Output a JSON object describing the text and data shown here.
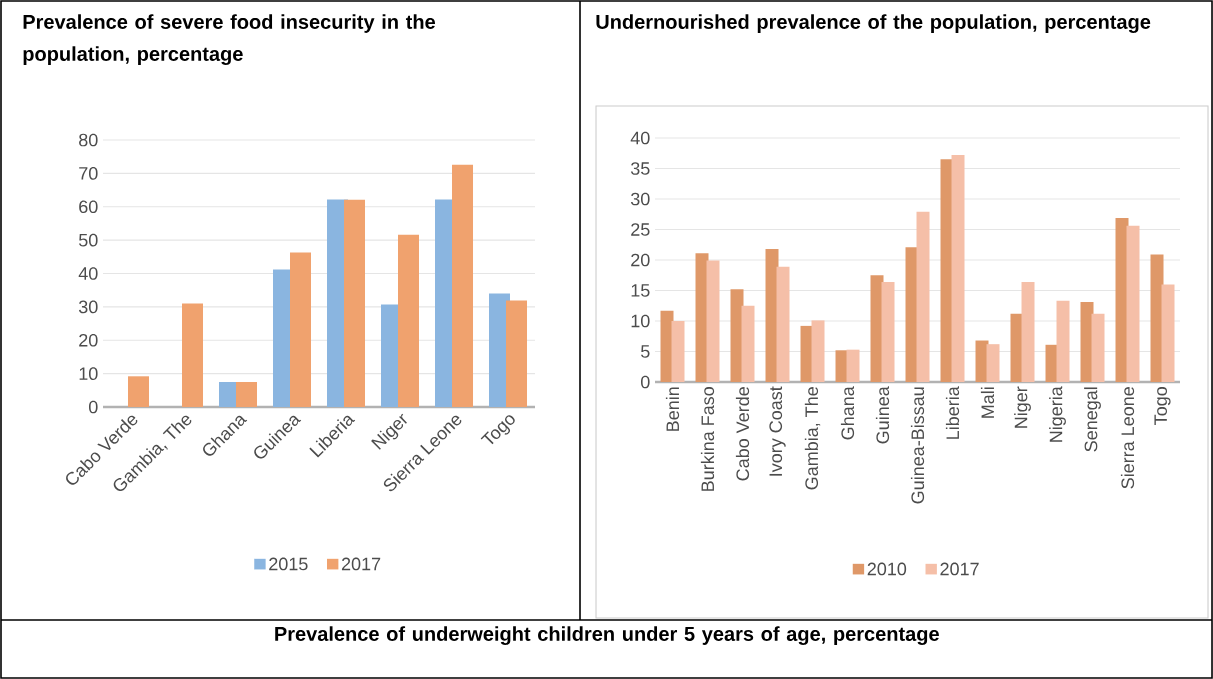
{
  "chart_data": [
    {
      "type": "bar",
      "title": "Prevalence of severe food insecurity in the population, percentage",
      "categories": [
        "Cabo Verde",
        "Gambia, The",
        "Ghana",
        "Guinea",
        "Liberia",
        "Niger",
        "Sierra Leone",
        "Togo"
      ],
      "series": [
        {
          "name": "2015",
          "color": "#8ab5e0",
          "values": [
            null,
            null,
            7.5,
            41.2,
            62.2,
            30.7,
            62.2,
            34.0
          ]
        },
        {
          "name": "2017",
          "color": "#f0a26e",
          "values": [
            9.2,
            31.0,
            7.5,
            46.3,
            62.1,
            51.6,
            72.6,
            31.9
          ]
        }
      ],
      "ylim": [
        0,
        80
      ],
      "yticks": [
        0,
        10,
        20,
        30,
        40,
        50,
        60,
        70,
        80
      ],
      "grid": "y",
      "legend": "bottom"
    },
    {
      "type": "bar",
      "title": "Undernourished prevalence of the population, percentage",
      "categories": [
        "Benin",
        "Burkina Faso",
        "Cabo Verde",
        "Ivory Coast",
        "Gambia, The",
        "Ghana",
        "Guinea",
        "Guinea-Bissau",
        "Liberia",
        "Mali",
        "Niger",
        "Nigeria",
        "Senegal",
        "Sierra Leone",
        "Togo"
      ],
      "series": [
        {
          "name": "2010",
          "color": "#df9868",
          "values": [
            11.7,
            21.1,
            15.2,
            21.8,
            9.2,
            5.2,
            17.5,
            22.1,
            36.5,
            6.8,
            11.2,
            6.1,
            13.1,
            26.9,
            20.9
          ]
        },
        {
          "name": "2017",
          "color": "#f5bfa8",
          "values": [
            10.0,
            19.9,
            12.5,
            18.9,
            10.1,
            5.3,
            16.4,
            27.9,
            37.2,
            6.2,
            16.4,
            13.3,
            11.2,
            25.6,
            16.0
          ]
        }
      ],
      "ylim": [
        0,
        40
      ],
      "yticks": [
        0,
        5,
        10,
        15,
        20,
        25,
        30,
        35,
        40
      ],
      "grid": "y",
      "legend": "bottom"
    },
    {
      "type": "other",
      "title": "Prevalence of underweight children under 5 years of age, percentage"
    }
  ]
}
